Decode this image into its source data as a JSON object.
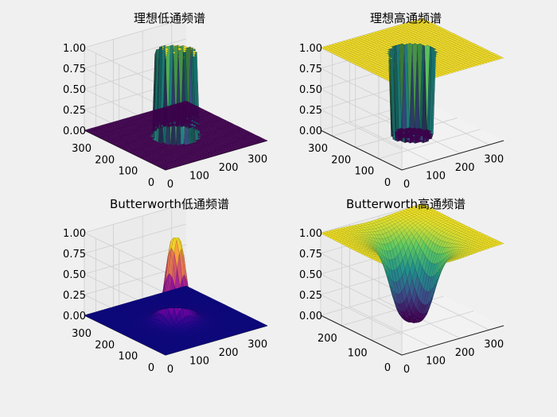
{
  "chart_data": [
    {
      "type": "surface3d",
      "title": "理想低通频谱",
      "filter": "ideal",
      "mode": "lowpass",
      "x_ticks": [
        "0",
        "100",
        "200",
        "300"
      ],
      "y_ticks": [
        "0",
        "100",
        "200",
        "300"
      ],
      "z_ticks": [
        "0.00",
        "0.25",
        "0.50",
        "0.75",
        "1.00"
      ],
      "xlim": [
        0,
        350
      ],
      "ylim": [
        0,
        350
      ],
      "zlim": [
        0,
        1
      ],
      "center": [
        175,
        175
      ],
      "cutoff_radius": 60,
      "colormap": "viridis"
    },
    {
      "type": "surface3d",
      "title": "理想高通频谱",
      "filter": "ideal",
      "mode": "highpass",
      "x_ticks": [
        "0",
        "100",
        "200",
        "300"
      ],
      "y_ticks": [
        "0",
        "100",
        "200",
        "300"
      ],
      "z_ticks": [
        "0.00",
        "0.25",
        "0.50",
        "0.75",
        "1.00"
      ],
      "xlim": [
        0,
        350
      ],
      "ylim": [
        0,
        350
      ],
      "zlim": [
        0,
        1
      ],
      "center": [
        175,
        175
      ],
      "cutoff_radius": 60,
      "colormap": "viridis"
    },
    {
      "type": "surface3d",
      "title": "Butterworth低通频谱",
      "filter": "butterworth",
      "mode": "lowpass",
      "x_ticks": [
        "0",
        "100",
        "200",
        "300"
      ],
      "y_ticks": [
        "0",
        "100",
        "200",
        "300"
      ],
      "z_ticks": [
        "0.00",
        "0.25",
        "0.50",
        "0.75",
        "1.00"
      ],
      "xlim": [
        0,
        350
      ],
      "ylim": [
        0,
        350
      ],
      "zlim": [
        0,
        1
      ],
      "center": [
        175,
        175
      ],
      "cutoff_radius": 30,
      "order": 2,
      "colormap": "plasma"
    },
    {
      "type": "surface3d",
      "title": "Butterworth高通频谱",
      "filter": "butterworth",
      "mode": "highpass",
      "x_ticks": [
        "0",
        "100",
        "200",
        "300"
      ],
      "y_ticks": [
        "0",
        "100",
        "200"
      ],
      "z_ticks": [
        "0.00",
        "0.25",
        "0.50",
        "0.75",
        "1.00"
      ],
      "xlim": [
        0,
        350
      ],
      "ylim": [
        0,
        270
      ],
      "zlim": [
        0,
        1
      ],
      "center": [
        175,
        135
      ],
      "cutoff_radius": 60,
      "order": 2,
      "colormap": "viridis"
    }
  ]
}
